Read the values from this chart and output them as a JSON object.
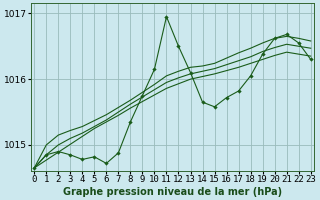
{
  "title": "Graphe pression niveau de la mer (hPa)",
  "bg_color": "#cce8ee",
  "grid_color": "#99bbbb",
  "line_color": "#1a5c1a",
  "hours": [
    0,
    1,
    2,
    3,
    4,
    5,
    6,
    7,
    8,
    9,
    10,
    11,
    12,
    13,
    14,
    15,
    16,
    17,
    18,
    19,
    20,
    21,
    22,
    23
  ],
  "pressure_main": [
    1014.65,
    1014.85,
    1014.9,
    1014.85,
    1014.78,
    1014.82,
    1014.72,
    1014.88,
    1015.35,
    1015.75,
    1016.15,
    1016.95,
    1016.5,
    1016.1,
    1015.65,
    1015.58,
    1015.72,
    1015.82,
    1016.05,
    1016.38,
    1016.62,
    1016.68,
    1016.55,
    1016.3
  ],
  "trend1": [
    1014.65,
    1014.77,
    1014.89,
    1015.01,
    1015.13,
    1015.25,
    1015.35,
    1015.45,
    1015.56,
    1015.66,
    1015.76,
    1015.86,
    1015.93,
    1016.0,
    1016.04,
    1016.08,
    1016.13,
    1016.18,
    1016.24,
    1016.3,
    1016.36,
    1016.41,
    1016.38,
    1016.35
  ],
  "trend2": [
    1014.65,
    1014.85,
    1015.0,
    1015.1,
    1015.18,
    1015.28,
    1015.38,
    1015.5,
    1015.62,
    1015.73,
    1015.84,
    1015.95,
    1016.02,
    1016.08,
    1016.12,
    1016.16,
    1016.22,
    1016.28,
    1016.34,
    1016.42,
    1016.48,
    1016.53,
    1016.5,
    1016.47
  ],
  "trend3": [
    1014.65,
    1015.0,
    1015.15,
    1015.22,
    1015.28,
    1015.37,
    1015.46,
    1015.57,
    1015.68,
    1015.8,
    1015.92,
    1016.05,
    1016.12,
    1016.18,
    1016.2,
    1016.24,
    1016.32,
    1016.4,
    1016.47,
    1016.55,
    1016.62,
    1016.65,
    1016.62,
    1016.58
  ],
  "ylim_low": 1014.6,
  "ylim_high": 1017.15,
  "yticks": [
    1015,
    1016,
    1017
  ],
  "tick_fontsize": 6.5,
  "title_fontsize": 7.0
}
